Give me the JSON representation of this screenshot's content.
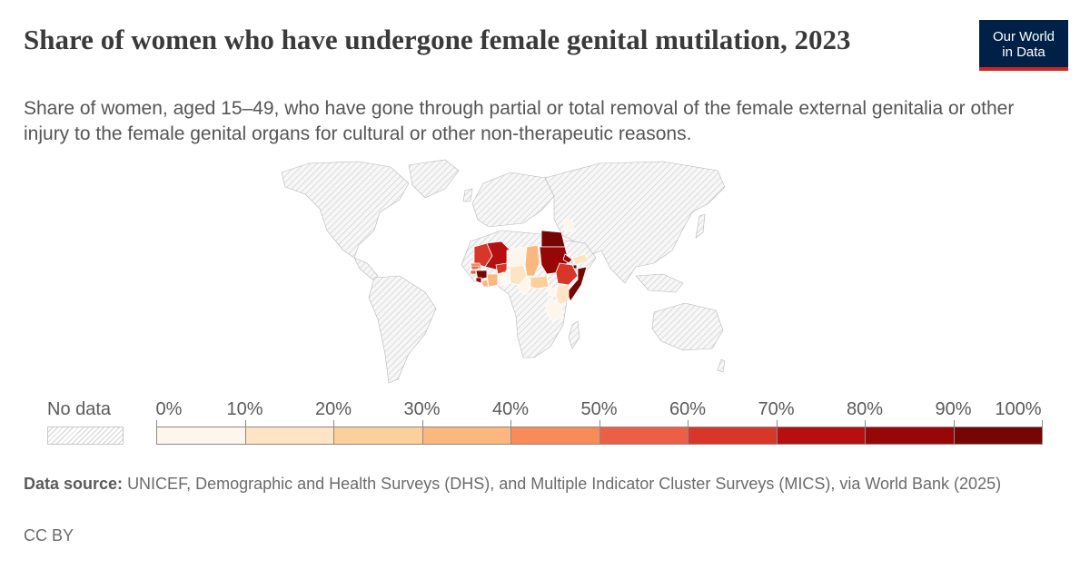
{
  "header": {
    "title": "Share of women who have undergone female genital mutilation, 2023",
    "subtitle": "Share of women, aged 15–49, who have gone through partial or total removal of the female external genitalia or other injury to the female genital organs for cultural or other non-therapeutic reasons."
  },
  "logo": {
    "line1": "Our World",
    "line2": "in Data"
  },
  "legend": {
    "no_data_label": "No data",
    "ticks": [
      "0%",
      "10%",
      "20%",
      "30%",
      "40%",
      "50%",
      "60%",
      "70%",
      "80%",
      "90%",
      "100%"
    ],
    "bins": [
      {
        "range": [
          0,
          10
        ],
        "color": "#fef6ec"
      },
      {
        "range": [
          10,
          20
        ],
        "color": "#fde4c4"
      },
      {
        "range": [
          20,
          30
        ],
        "color": "#fcd09a"
      },
      {
        "range": [
          30,
          40
        ],
        "color": "#fbb77e"
      },
      {
        "range": [
          40,
          50
        ],
        "color": "#f98b58"
      },
      {
        "range": [
          50,
          60
        ],
        "color": "#ed5f45"
      },
      {
        "range": [
          60,
          70
        ],
        "color": "#d73628"
      },
      {
        "range": [
          70,
          80
        ],
        "color": "#b50f0f"
      },
      {
        "range": [
          80,
          90
        ],
        "color": "#980707"
      },
      {
        "range": [
          90,
          100
        ],
        "color": "#760505"
      }
    ]
  },
  "map_regions": [
    {
      "id": "mauritania",
      "color": "#d73628"
    },
    {
      "id": "mali",
      "color": "#b50f0f"
    },
    {
      "id": "senegal",
      "color": "#f98b58"
    },
    {
      "id": "gambia",
      "color": "#b50f0f"
    },
    {
      "id": "guinea-bissau",
      "color": "#ed5f45"
    },
    {
      "id": "guinea",
      "color": "#760505"
    },
    {
      "id": "sierra-leone",
      "color": "#980707"
    },
    {
      "id": "liberia",
      "color": "#fbb77e"
    },
    {
      "id": "cote-divoire",
      "color": "#fbb77e"
    },
    {
      "id": "burkina-faso",
      "color": "#d73628"
    },
    {
      "id": "ghana",
      "color": "#fef6ec"
    },
    {
      "id": "togo",
      "color": "#fef6ec"
    },
    {
      "id": "benin",
      "color": "#fef6ec"
    },
    {
      "id": "nigeria",
      "color": "#fde4c4"
    },
    {
      "id": "niger",
      "color": "#fef6ec"
    },
    {
      "id": "chad",
      "color": "#fbb77e"
    },
    {
      "id": "cameroon",
      "color": "#fef6ec"
    },
    {
      "id": "central-african-republic",
      "color": "#fcd09a"
    },
    {
      "id": "egypt",
      "color": "#760505"
    },
    {
      "id": "sudan",
      "color": "#980707"
    },
    {
      "id": "eritrea",
      "color": "#980707"
    },
    {
      "id": "djibouti",
      "color": "#760505"
    },
    {
      "id": "ethiopia",
      "color": "#d73628"
    },
    {
      "id": "somalia",
      "color": "#760505"
    },
    {
      "id": "kenya",
      "color": "#fde4c4"
    },
    {
      "id": "uganda",
      "color": "#fef6ec"
    },
    {
      "id": "tanzania",
      "color": "#fef6ec"
    },
    {
      "id": "iraq",
      "color": "#fef6ec"
    },
    {
      "id": "yemen",
      "color": "#fde4c4"
    }
  ],
  "footer": {
    "source_label": "Data source:",
    "source_text": "UNICEF, Demographic and Health Surveys (DHS), and Multiple Indicator Cluster Surveys (MICS), via World Bank (2025)",
    "license": "CC BY"
  }
}
